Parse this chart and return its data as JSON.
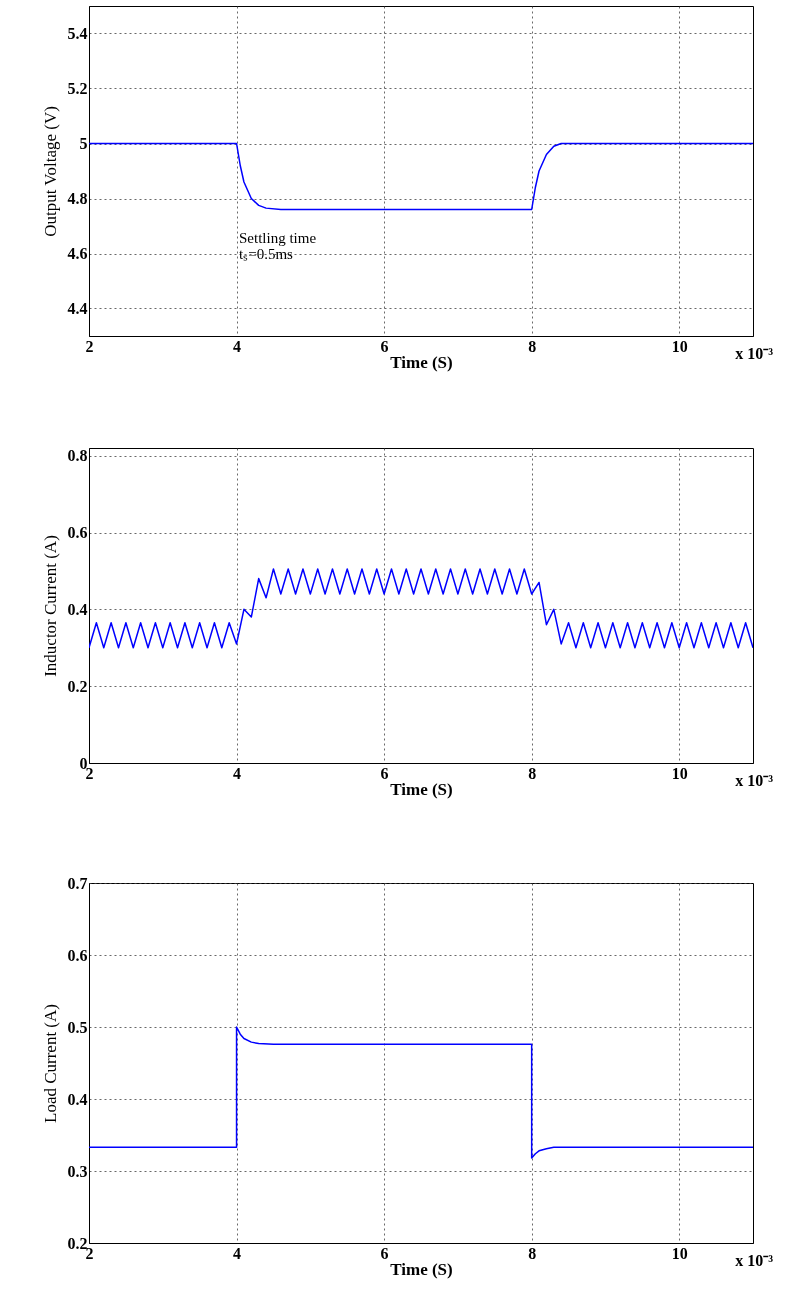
{
  "chart_data": [
    {
      "type": "line",
      "xlabel": "Time (S)",
      "ylabel": "Output Voltage (V)",
      "xlim": [
        2,
        11
      ],
      "xticks": [
        2,
        4,
        6,
        8,
        10
      ],
      "ylim": [
        4.3,
        5.5
      ],
      "yticks": [
        4.4,
        4.6,
        4.8,
        5,
        5.2,
        5.4
      ],
      "grid": true,
      "marker": "none",
      "line_style": "solid",
      "series": [
        {
          "color": "#0000ff",
          "x": [
            2,
            4,
            4.05,
            4.1,
            4.2,
            4.3,
            4.4,
            4.6,
            5,
            8,
            8.05,
            8.1,
            8.2,
            8.3,
            8.4,
            8.6,
            11
          ],
          "values": [
            5,
            5,
            4.92,
            4.86,
            4.8,
            4.775,
            4.765,
            4.76,
            4.76,
            4.76,
            4.84,
            4.9,
            4.96,
            4.99,
            5,
            5,
            5
          ]
        }
      ],
      "annotations": [
        "Settling time",
        "tₛ=0.5ms",
        "x 10⁻³"
      ]
    },
    {
      "type": "line",
      "xlabel": "Time (S)",
      "ylabel": "Inductor Current (A)",
      "xlim": [
        2,
        11
      ],
      "xticks": [
        2,
        4,
        6,
        8,
        10
      ],
      "ylim": [
        0,
        0.82
      ],
      "yticks": [
        0,
        0.2,
        0.4,
        0.6,
        0.8
      ],
      "grid": true,
      "marker": "none",
      "line_style": "solid",
      "series": [
        {
          "color": "#0000ff",
          "x": [
            2,
            2.1,
            2.2,
            2.3,
            2.4,
            2.5,
            2.6,
            2.7,
            2.8,
            2.9,
            3,
            3.1,
            3.2,
            3.3,
            3.4,
            3.5,
            3.6,
            3.7,
            3.8,
            3.9,
            4,
            4.1,
            4.2,
            4.3,
            4.4,
            4.5,
            4.6,
            4.7,
            4.8,
            4.9,
            5,
            5.1,
            5.2,
            5.3,
            5.4,
            5.5,
            5.6,
            5.7,
            5.8,
            5.9,
            6,
            6.1,
            6.2,
            6.3,
            6.4,
            6.5,
            6.6,
            6.7,
            6.8,
            6.9,
            7,
            7.1,
            7.2,
            7.3,
            7.4,
            7.5,
            7.6,
            7.7,
            7.8,
            7.9,
            8,
            8.1,
            8.2,
            8.3,
            8.4,
            8.5,
            8.6,
            8.7,
            8.8,
            8.9,
            9,
            9.1,
            9.2,
            9.3,
            9.4,
            9.5,
            9.6,
            9.7,
            9.8,
            9.9,
            10,
            10.1,
            10.2,
            10.3,
            10.4,
            10.5,
            10.6,
            10.7,
            10.8,
            10.9,
            11
          ],
          "values": [
            0.3,
            0.365,
            0.3,
            0.365,
            0.3,
            0.365,
            0.3,
            0.365,
            0.3,
            0.365,
            0.3,
            0.365,
            0.3,
            0.365,
            0.3,
            0.365,
            0.3,
            0.365,
            0.3,
            0.365,
            0.31,
            0.4,
            0.38,
            0.48,
            0.43,
            0.505,
            0.44,
            0.505,
            0.44,
            0.505,
            0.44,
            0.505,
            0.44,
            0.505,
            0.44,
            0.505,
            0.44,
            0.505,
            0.44,
            0.505,
            0.44,
            0.505,
            0.44,
            0.505,
            0.44,
            0.505,
            0.44,
            0.505,
            0.44,
            0.505,
            0.44,
            0.505,
            0.44,
            0.505,
            0.44,
            0.505,
            0.44,
            0.505,
            0.44,
            0.505,
            0.44,
            0.47,
            0.36,
            0.4,
            0.31,
            0.365,
            0.3,
            0.365,
            0.3,
            0.365,
            0.3,
            0.365,
            0.3,
            0.365,
            0.3,
            0.365,
            0.3,
            0.365,
            0.3,
            0.365,
            0.3,
            0.365,
            0.3,
            0.365,
            0.3,
            0.365,
            0.3,
            0.365,
            0.3,
            0.365,
            0.3
          ]
        }
      ],
      "annotations": [
        "x 10⁻³"
      ]
    },
    {
      "type": "line",
      "xlabel": "Time (S)",
      "ylabel": "Load Current (A)",
      "xlim": [
        2,
        11
      ],
      "xticks": [
        2,
        4,
        6,
        8,
        10
      ],
      "ylim": [
        0.2,
        0.7
      ],
      "yticks": [
        0.2,
        0.3,
        0.4,
        0.5,
        0.6,
        0.7
      ],
      "grid": true,
      "marker": "none",
      "line_style": "solid",
      "series": [
        {
          "color": "#0000ff",
          "x": [
            2,
            4,
            4,
            4.05,
            4.1,
            4.2,
            4.3,
            4.5,
            8,
            8,
            8.05,
            8.1,
            8.2,
            8.3,
            8.5,
            11
          ],
          "values": [
            0.333,
            0.333,
            0.5,
            0.49,
            0.484,
            0.479,
            0.477,
            0.476,
            0.476,
            0.318,
            0.324,
            0.328,
            0.331,
            0.333,
            0.333,
            0.333
          ]
        }
      ],
      "annotations": [
        "x 10⁻³"
      ]
    }
  ]
}
